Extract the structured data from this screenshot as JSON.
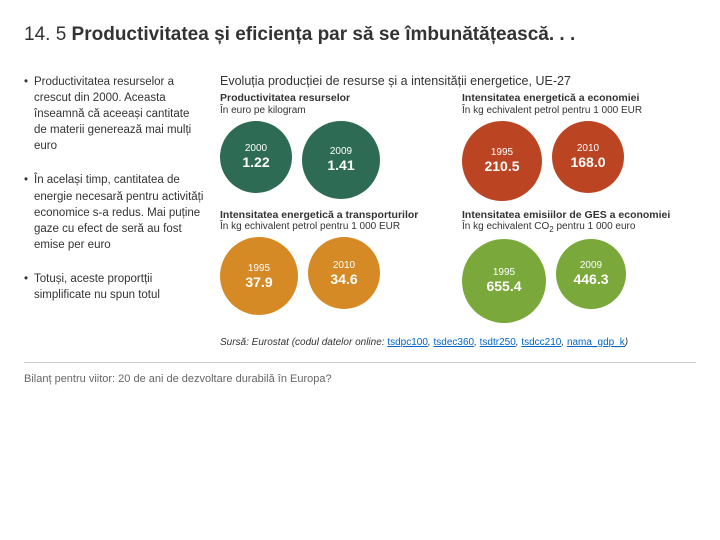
{
  "title_prefix": "14. 5 ",
  "title_bold": "Productivitatea și eficiența par să se îmbunătățească. . .",
  "bullets": [
    "Productivitatea resurselor a crescut din 2000. Aceasta înseamnă că aceeași cantitate de materii generează mai mulți euro",
    "În același timp, cantitatea de energie necesară pentru activități economice s-a redus. Mai puține gaze cu efect de seră au fost emise per euro",
    "Totuși, aceste proportții simplificate nu spun totul"
  ],
  "chart_title": "Evoluția producției de resurse și a intensității energetice, UE-27",
  "panels": [
    {
      "title": "Productivitatea resurselor",
      "subtitle": "În euro pe kilogram",
      "circles": [
        {
          "year": "2000",
          "value": "1.22",
          "color": "#2d6b54",
          "size": 72
        },
        {
          "year": "2009",
          "value": "1.41",
          "color": "#2d6b54",
          "size": 78
        }
      ]
    },
    {
      "title": "Intensitatea energetică a economiei",
      "subtitle": "În kg echivalent petrol pentru 1 000 EUR",
      "circles": [
        {
          "year": "1995",
          "value": "210.5",
          "color": "#bb4422",
          "size": 80
        },
        {
          "year": "2010",
          "value": "168.0",
          "color": "#bb4422",
          "size": 72
        }
      ]
    },
    {
      "title": "Intensitatea energetică a transporturilor",
      "subtitle": "În kg echivalent petrol pentru 1 000 EUR",
      "circles": [
        {
          "year": "1995",
          "value": "37.9",
          "color": "#d68a26",
          "size": 78
        },
        {
          "year": "2010",
          "value": "34.6",
          "color": "#d68a26",
          "size": 72
        }
      ]
    },
    {
      "title": "Intensitatea emisiilor de GES a economiei",
      "subtitle_html": "În kg echivalent CO₂ pentru 1 000 euro",
      "circles": [
        {
          "year": "1995",
          "value": "655.4",
          "color": "#7aa83a",
          "size": 84
        },
        {
          "year": "2009",
          "value": "446.3",
          "color": "#7aa83a",
          "size": 70
        }
      ]
    }
  ],
  "source_prefix": "Sursă:",
  "source_text": " Eurostat (codul datelor online: ",
  "source_links": [
    "tsdpc100",
    "tsdec360",
    "tsdtr250",
    "tsdcc210",
    "nama_gdp_k"
  ],
  "source_suffix": ")",
  "footer": "Bilanț pentru viitor: 20 de ani de dezvoltare durabilă în Europa?"
}
